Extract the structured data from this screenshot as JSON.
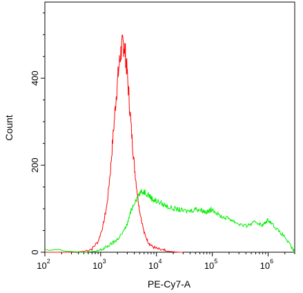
{
  "chart_data": {
    "type": "line",
    "title": "",
    "xlabel": "PE-Cy7-A",
    "ylabel": "Count",
    "xscale": "log",
    "xlim": [
      100,
      3000000
    ],
    "ylim": [
      0,
      575
    ],
    "grid": false,
    "legend": "none",
    "x_ticks": [
      {
        "value": 100,
        "base": "10",
        "exp": "2"
      },
      {
        "value": 1000,
        "base": "10",
        "exp": "3"
      },
      {
        "value": 10000,
        "base": "10",
        "exp": "4"
      },
      {
        "value": 100000,
        "base": "10",
        "exp": "5"
      },
      {
        "value": 1000000,
        "base": "10",
        "exp": "6"
      }
    ],
    "y_ticks": [
      {
        "value": 0,
        "label": "0"
      },
      {
        "value": 200,
        "label": "200"
      },
      {
        "value": 400,
        "label": "400"
      }
    ],
    "series": [
      {
        "color": "#ff0000",
        "x": [
          100,
          300,
          500,
          700,
          900,
          1100,
          1300,
          1500,
          1700,
          1900,
          2100,
          2300,
          2500,
          2700,
          2900,
          3200,
          3600,
          4000,
          4500,
          5000,
          6000,
          7000,
          8000,
          10000,
          13000,
          16000,
          20000,
          25000,
          30000
        ],
        "y": [
          0,
          0,
          2,
          8,
          25,
          60,
          110,
          190,
          280,
          360,
          420,
          460,
          480,
          470,
          430,
          360,
          270,
          200,
          140,
          95,
          45,
          25,
          15,
          8,
          4,
          2,
          1,
          0,
          0
        ]
      },
      {
        "color": "#00ee00",
        "x": [
          100,
          500,
          800,
          1000,
          1200,
          1500,
          1800,
          2000,
          2500,
          3000,
          3500,
          4000,
          5000,
          6000,
          7000,
          8000,
          9000,
          10000,
          13000,
          16000,
          20000,
          25000,
          30000,
          40000,
          50000,
          60000,
          70000,
          80000,
          90000,
          100000,
          130000,
          160000,
          200000,
          250000,
          300000,
          400000,
          500000,
          600000,
          700000,
          800000,
          900000,
          1000000,
          1200000,
          1500000,
          2000000,
          2500000,
          3000000
        ],
        "y": [
          5,
          0,
          2,
          5,
          10,
          18,
          25,
          30,
          45,
          65,
          95,
          115,
          135,
          140,
          135,
          125,
          120,
          118,
          110,
          105,
          100,
          98,
          95,
          95,
          100,
          98,
          95,
          92,
          95,
          100,
          85,
          80,
          78,
          70,
          65,
          60,
          65,
          70,
          65,
          62,
          68,
          75,
          65,
          50,
          35,
          15,
          0
        ]
      }
    ]
  }
}
